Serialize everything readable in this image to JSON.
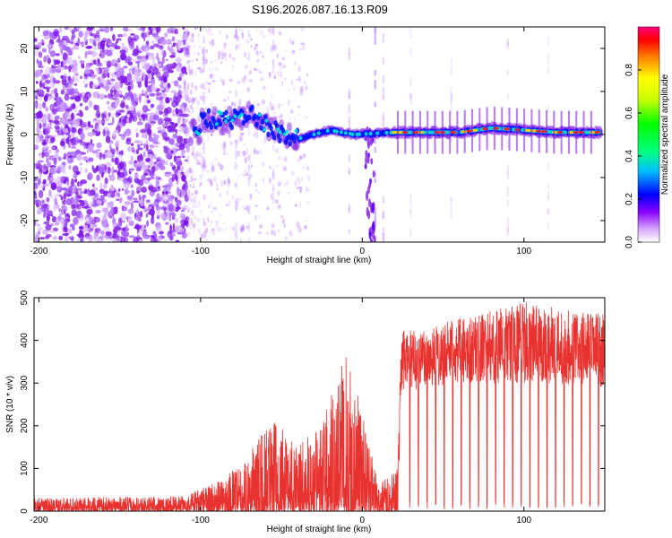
{
  "figure": {
    "title": "S196.2026.087.16.13.R09"
  },
  "chart_data": [
    {
      "type": "heatmap",
      "title": "S196.2026.087.16.13.R09",
      "xlabel": "Height of straight line (km)",
      "ylabel": "Frequency (Hz)",
      "xlim": [
        -203,
        150
      ],
      "ylim": [
        -25,
        25
      ],
      "xticks": [
        -200,
        -100,
        0,
        100
      ],
      "yticks": [
        -20,
        -10,
        0,
        10,
        20
      ],
      "colorbar": {
        "label": "Normalized spectral amplitude",
        "range": [
          0.0,
          1.0
        ],
        "ticks": [
          0.0,
          0.2,
          0.4,
          0.6,
          0.8
        ],
        "tick_labels": [
          "0.0",
          "0.2",
          "0.4",
          "0.6",
          "0.8"
        ],
        "colors": [
          "#ffffff",
          "#a020f0",
          "#0000ff",
          "#00ffff",
          "#00ff00",
          "#ffff00",
          "#ff8000",
          "#ff0000",
          "#ff0080"
        ]
      },
      "description_points": {
        "signal_line": [
          {
            "x": -100,
            "y": 4
          },
          {
            "x": -85,
            "y": 3
          },
          {
            "x": -70,
            "y": 5
          },
          {
            "x": -55,
            "y": 1
          },
          {
            "x": -40,
            "y": -1
          },
          {
            "x": -20,
            "y": 1
          },
          {
            "x": -5,
            "y": 0
          },
          {
            "x": 20,
            "y": 0.5
          },
          {
            "x": 40,
            "y": 0.5
          },
          {
            "x": 60,
            "y": 0.5
          },
          {
            "x": 80,
            "y": 1.5
          },
          {
            "x": 100,
            "y": 1
          },
          {
            "x": 120,
            "y": 0.5
          },
          {
            "x": 145,
            "y": 0.5
          }
        ]
      }
    },
    {
      "type": "line",
      "xlabel": "Height of straight line (km)",
      "ylabel": "SNR (10 * v/v)",
      "xlim": [
        -203,
        150
      ],
      "ylim": [
        0,
        500
      ],
      "xticks": [
        -200,
        -100,
        0,
        100
      ],
      "yticks": [
        0,
        100,
        200,
        300,
        400,
        500
      ],
      "series": [
        {
          "name": "SNR",
          "color": "#e8322f",
          "envelope": [
            {
              "x": -203,
              "low": 0,
              "high": 30
            },
            {
              "x": -110,
              "low": 0,
              "high": 35
            },
            {
              "x": -90,
              "low": 0,
              "high": 70
            },
            {
              "x": -75,
              "low": 0,
              "high": 110
            },
            {
              "x": -55,
              "low": 0,
              "high": 220
            },
            {
              "x": -40,
              "low": 0,
              "high": 150
            },
            {
              "x": -25,
              "low": 0,
              "high": 210
            },
            {
              "x": -10,
              "low": 0,
              "high": 370
            },
            {
              "x": 0,
              "low": 0,
              "high": 240
            },
            {
              "x": 10,
              "low": 0,
              "high": 60
            },
            {
              "x": 22,
              "low": 0,
              "high": 100
            },
            {
              "x": 24,
              "low": 280,
              "high": 420
            },
            {
              "x": 60,
              "low": 300,
              "high": 450
            },
            {
              "x": 100,
              "low": 300,
              "high": 490
            },
            {
              "x": 150,
              "low": 290,
              "high": 460
            }
          ]
        }
      ]
    }
  ]
}
